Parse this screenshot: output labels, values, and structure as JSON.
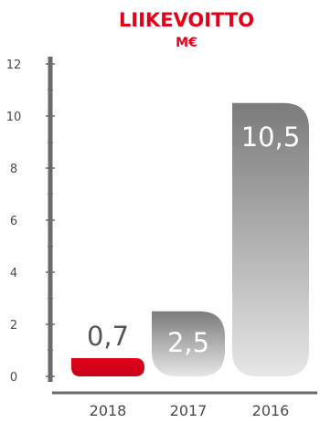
{
  "chart_data": {
    "type": "bar",
    "title": "LIIKEVOITTO",
    "subtitle": "M€",
    "categories": [
      "2018",
      "2017",
      "2016"
    ],
    "values": [
      0.7,
      2.5,
      10.5
    ],
    "value_labels": [
      "0,7",
      "2,5",
      "10,5"
    ],
    "ylim": [
      0,
      12
    ],
    "yticks": [
      "0",
      "2",
      "4",
      "6",
      "8",
      "10",
      "12"
    ],
    "grid": false,
    "colors": {
      "accent": "#e2001a",
      "bar_light": "#e6e6e6",
      "bar_dark": "#7b7b7b",
      "axis": "#6a6a6a",
      "text": "#4a4a4a"
    }
  }
}
